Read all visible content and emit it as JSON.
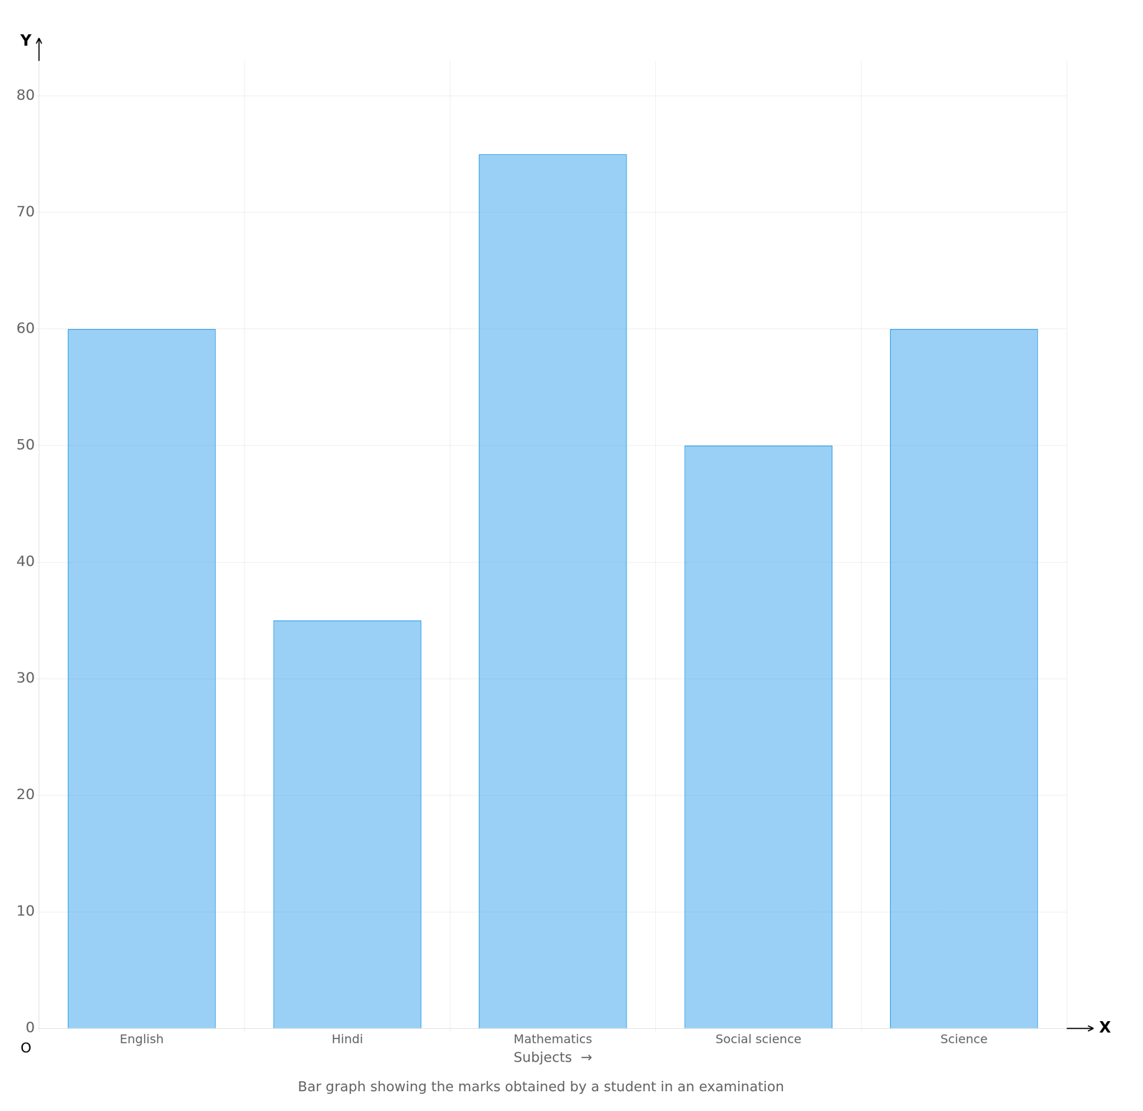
{
  "chart_data": {
    "type": "bar",
    "title": "Bar graph showing the marks obtained by a student in an examination",
    "xlabel": "Subjects  →",
    "annotations": [
      "Y",
      "X",
      "O"
    ],
    "categories": [
      "English",
      "Hindi",
      "Mathematics",
      "Social science",
      "Science"
    ],
    "values": [
      60,
      35,
      75,
      50,
      60
    ],
    "ylim": [
      0,
      83
    ],
    "yticks": [
      0,
      10,
      20,
      30,
      40,
      50,
      60,
      70,
      80
    ],
    "grid": true
  }
}
